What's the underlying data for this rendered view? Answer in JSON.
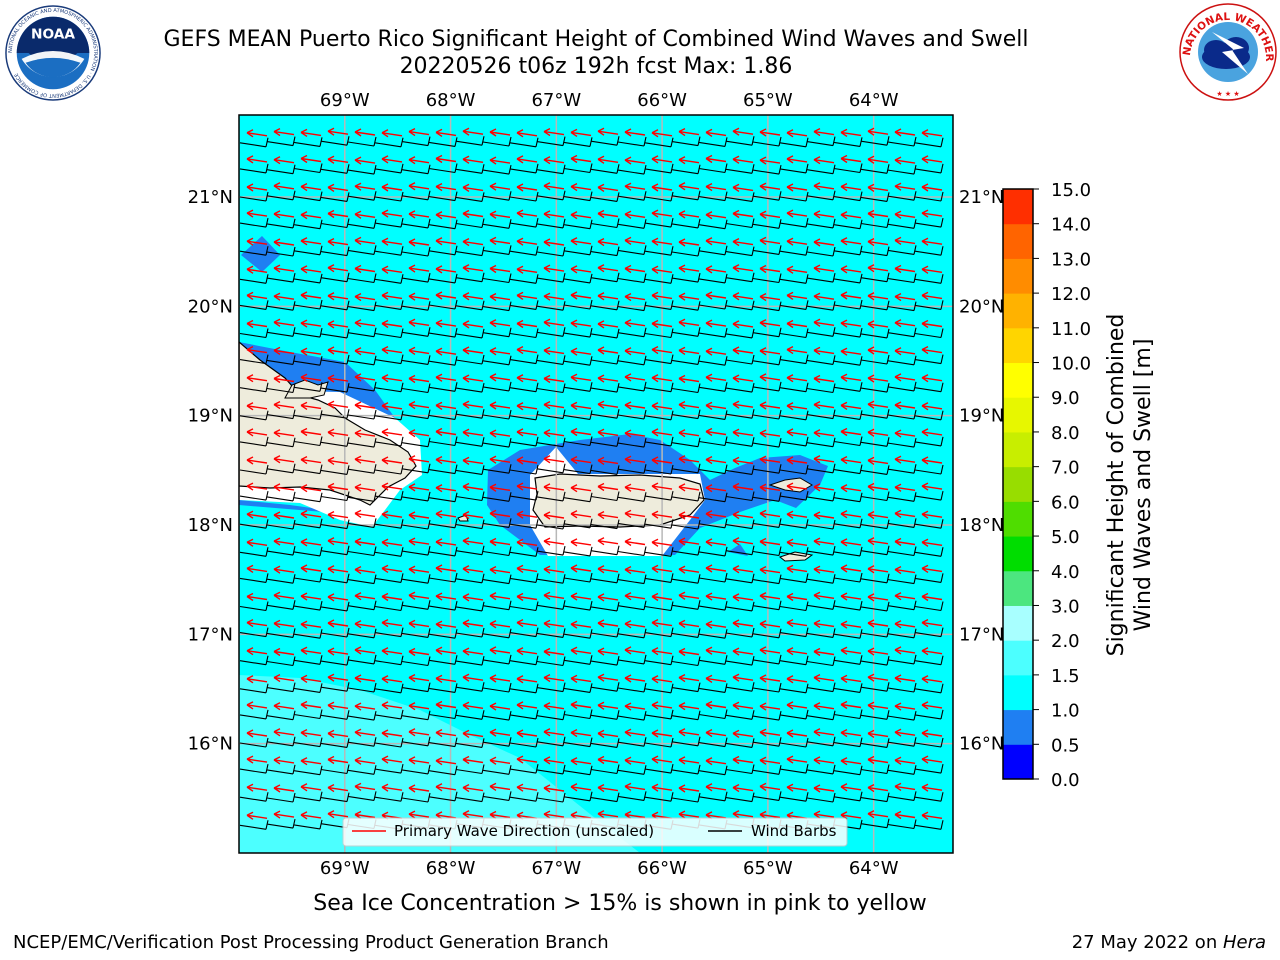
{
  "header": {
    "title_line1": "GEFS MEAN Puerto Rico Significant Height of Combined Wind Waves and Swell",
    "title_line2": "20220526 t06z 192h fcst   Max: 1.86"
  },
  "logos": {
    "left": {
      "text": "NOAA",
      "ring_text": "NATIONAL OCEANIC AND ATMOSPHERIC ADMINISTRATION · U.S. DEPARTMENT OF COMMERCE"
    },
    "right": {
      "ring_text": "NATIONAL WEATHER SERVICE"
    }
  },
  "chart_data": {
    "type": "heatmap",
    "map": {
      "lon_ticks": [
        "69°W",
        "68°W",
        "67°W",
        "66°W",
        "65°W",
        "64°W"
      ],
      "lat_ticks": [
        "21°N",
        "20°N",
        "19°N",
        "18°N",
        "17°N",
        "16°N"
      ],
      "lon_range": [
        -70.0,
        -63.25
      ],
      "lat_range": [
        15.0,
        21.75
      ],
      "gridlines": true
    },
    "max_value": 1.86,
    "field_values_m": {
      "open_water_typical": [
        1.0,
        1.5
      ],
      "near_shore_min": [
        0.5,
        1.0
      ],
      "south_region": [
        1.5,
        2.0
      ]
    },
    "colorbar": {
      "label": "Significant Height of Combined\nWind Waves and Swell [m]",
      "label_line1": "Significant Height of Combined",
      "label_line2": "Wind Waves and Swell [m]",
      "levels": [
        0.0,
        0.5,
        1.0,
        1.5,
        2.0,
        3.0,
        4.0,
        5.0,
        6.0,
        7.0,
        8.0,
        9.0,
        10.0,
        11.0,
        12.0,
        13.0,
        14.0,
        15.0
      ],
      "level_labels": [
        "0.0",
        "0.5",
        "1.0",
        "1.5",
        "2.0",
        "3.0",
        "4.0",
        "5.0",
        "6.0",
        "7.0",
        "8.0",
        "9.0",
        "10.0",
        "11.0",
        "12.0",
        "13.0",
        "14.0",
        "15.0"
      ],
      "colors": [
        "#0000ff",
        "#1f7ff2",
        "#00ffff",
        "#4cffff",
        "#a8ffff",
        "#4ce67f",
        "#00dd00",
        "#4fdd00",
        "#98dd00",
        "#c8ee00",
        "#e7f700",
        "#ffff00",
        "#ffd500",
        "#ffb200",
        "#ff8c00",
        "#ff6400",
        "#ff2f00"
      ]
    },
    "legend": {
      "position": "bottom-center",
      "entries": [
        {
          "name": "Primary Wave Direction (unscaled)",
          "color": "#ff0000"
        },
        {
          "name": "Wind Barbs",
          "color": "#000000"
        }
      ]
    },
    "colors": {
      "land": "#eeecdc",
      "open_water": "#00ffff",
      "shallow": "#1f7ff2",
      "south_light": "#4cffff",
      "arrow": "#ff0000",
      "barb": "#000000"
    }
  },
  "caption": "Sea Ice Concentration > 15% is shown in pink to yellow",
  "footer": {
    "left": "NCEP/EMC/Verification Post Processing Product Generation Branch",
    "right_prefix": "27 May 2022 on ",
    "right_host": "Hera"
  }
}
